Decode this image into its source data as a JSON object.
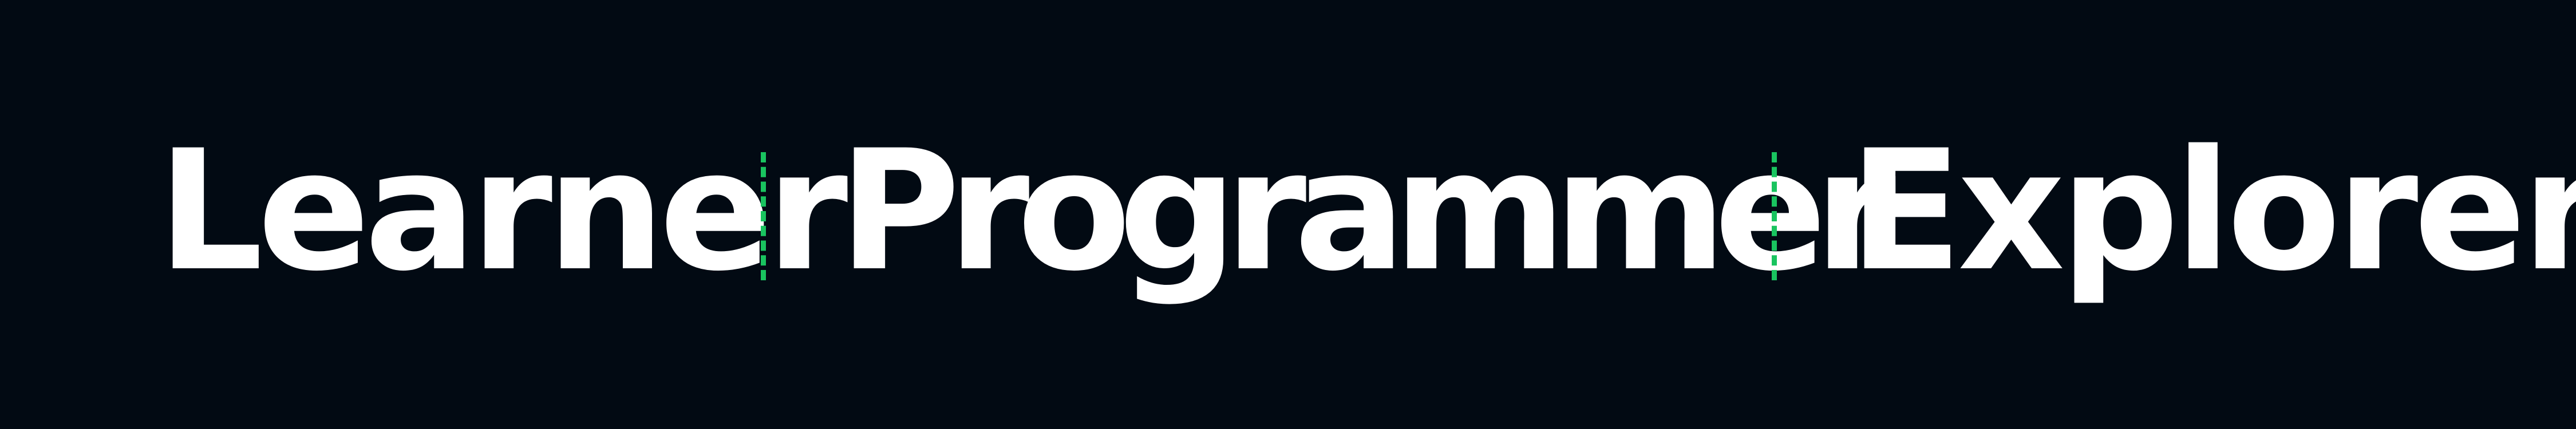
{
  "banner": {
    "words": [
      "Learner",
      "Programmer",
      "Explorer"
    ],
    "colors": {
      "background": "#020a13",
      "text": "#ffffff",
      "separator": "#19c45f"
    }
  }
}
